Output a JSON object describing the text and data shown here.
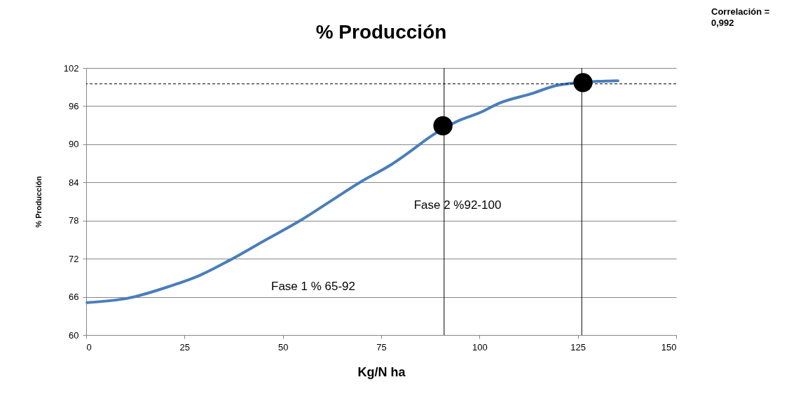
{
  "chart_data": {
    "type": "line",
    "title": "% Producción",
    "xlabel": "Kg/N ha",
    "ylabel": "% Producción",
    "xlim": [
      0,
      150
    ],
    "xticks": [
      0,
      25,
      50,
      75,
      100,
      125,
      150
    ],
    "ylim": [
      60,
      102
    ],
    "yticks": [
      60,
      66,
      72,
      78,
      84,
      90,
      96,
      102
    ],
    "grid": "y",
    "series": [
      {
        "color": "#4a7ebb",
        "x": [
          0.2,
          10.7,
          21.4,
          28.6,
          36.3,
          45.2,
          54.7,
          63.0,
          70.1,
          77.8,
          82.0,
          88.0,
          95.0,
          99.8,
          105.2,
          112.9,
          120.0,
          130.0,
          135.2
        ],
        "values": [
          65.1,
          65.8,
          67.7,
          69.3,
          71.7,
          74.8,
          78.1,
          81.4,
          84.2,
          86.9,
          88.7,
          91.4,
          93.8,
          94.9,
          96.5,
          97.9,
          99.3,
          99.9,
          100.0
        ]
      },
      {
        "type": "scatter",
        "color": "#000000",
        "marker": "circle",
        "x": [
          90.7,
          126.3
        ],
        "values": [
          92.9,
          99.7
        ]
      }
    ],
    "ref_lines": [
      {
        "axis": "y",
        "value": 99.5,
        "line_style": "dashed",
        "color": "#000000"
      },
      {
        "axis": "x",
        "value": 91,
        "line_style": "solid",
        "color": "#000000"
      },
      {
        "axis": "x",
        "value": 126,
        "line_style": "solid",
        "color": "#000000"
      }
    ],
    "annotations": [
      "Correlación = 0,992",
      "Fase 1 % 65-92",
      "Fase 2 %92-100"
    ]
  }
}
